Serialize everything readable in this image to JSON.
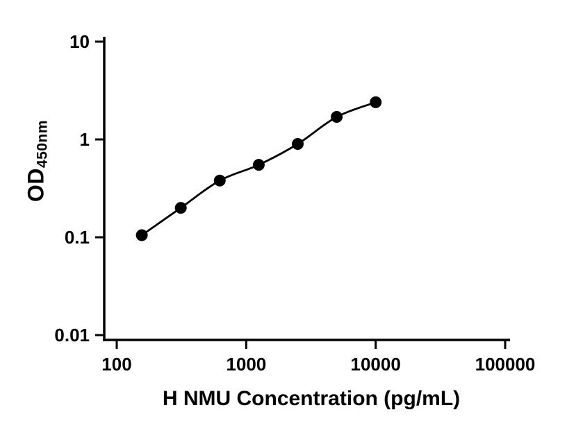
{
  "figure": {
    "background_color": "#ffffff",
    "ink_color": "#000000"
  },
  "chart_data": {
    "type": "scatter",
    "subtype": "ELISA standard curve, points with smooth fitted line, log-log axes",
    "title": "",
    "xlabel": "H NMU Concentration (pg/mL)",
    "ylabel_main": "OD",
    "ylabel_sub": "450nm",
    "x_scale": "log10",
    "y_scale": "log10",
    "xlim": [
      100,
      100000
    ],
    "ylim": [
      0.01,
      10
    ],
    "x_ticks": {
      "values": [
        100,
        1000,
        10000,
        100000
      ],
      "labels": [
        "100",
        "1000",
        "10000",
        "100000"
      ]
    },
    "y_ticks": {
      "values": [
        0.01,
        0.1,
        1,
        10
      ],
      "labels": [
        "0.01",
        "0.1",
        "1",
        "10"
      ]
    },
    "grid": false,
    "legend": false,
    "marker_color": "#000000",
    "line_color": "#000000",
    "series": [
      {
        "x": [
          156.25,
          312.5,
          625,
          1250,
          2500,
          5000,
          10000
        ],
        "y": [
          0.105,
          0.2,
          0.38,
          0.55,
          0.9,
          1.7,
          2.4
        ],
        "marker": "filled-circle",
        "line": "smooth-fit"
      }
    ]
  }
}
